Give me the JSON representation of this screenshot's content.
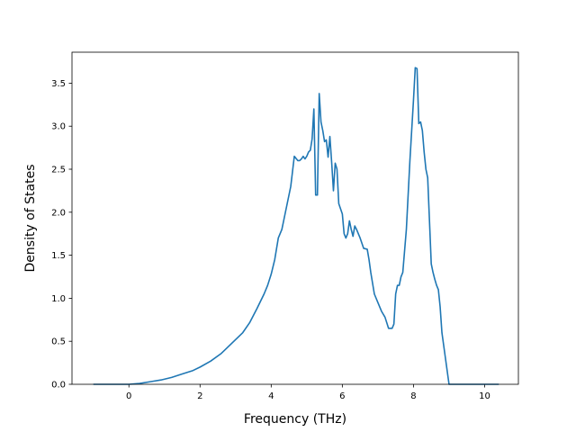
{
  "chart_data": {
    "type": "line",
    "title": "",
    "xlabel": "Frequency (THz)",
    "ylabel": "Density of States",
    "xlim": [
      -1.6,
      10.95
    ],
    "ylim": [
      0.0,
      3.86
    ],
    "xticks": [
      0,
      2,
      4,
      6,
      8,
      10
    ],
    "xtick_labels": [
      "0",
      "2",
      "4",
      "6",
      "8",
      "10"
    ],
    "yticks": [
      0.0,
      0.5,
      1.0,
      1.5,
      2.0,
      2.5,
      3.0,
      3.5
    ],
    "ytick_labels": [
      "0.0",
      "0.5",
      "1.0",
      "1.5",
      "2.0",
      "2.5",
      "3.0",
      "3.5"
    ],
    "grid": false,
    "line_color": "#1f77b4",
    "series": [
      {
        "x": [
          -1.0,
          0.0,
          0.3,
          0.6,
          0.9,
          1.2,
          1.5,
          1.8,
          2.0,
          2.3,
          2.6,
          2.8,
          3.0,
          3.2,
          3.4,
          3.6,
          3.8,
          3.9,
          4.0,
          4.1,
          4.2,
          4.3,
          4.35,
          4.45,
          4.55,
          4.65,
          4.75,
          4.8,
          4.85,
          4.9,
          4.95,
          5.0,
          5.05,
          5.1,
          5.15,
          5.2,
          5.25,
          5.3,
          5.35,
          5.4,
          5.45,
          5.5,
          5.55,
          5.6,
          5.65,
          5.7,
          5.75,
          5.8,
          5.85,
          5.9,
          6.0,
          6.05,
          6.1,
          6.15,
          6.2,
          6.25,
          6.3,
          6.35,
          6.4,
          6.5,
          6.6,
          6.7,
          6.75,
          6.8,
          6.9,
          7.0,
          7.1,
          7.2,
          7.3,
          7.4,
          7.45,
          7.5,
          7.55,
          7.6,
          7.65,
          7.7,
          7.8,
          7.9,
          8.0,
          8.05,
          8.1,
          8.15,
          8.2,
          8.25,
          8.3,
          8.35,
          8.4,
          8.45,
          8.5,
          8.55,
          8.6,
          8.65,
          8.7,
          8.75,
          8.8,
          8.9,
          9.0,
          9.1,
          9.15,
          9.2,
          9.25,
          9.3,
          9.35,
          9.4,
          9.5,
          9.55,
          10.0,
          10.4
        ],
        "y": [
          0.0,
          0.0,
          0.01,
          0.03,
          0.05,
          0.08,
          0.12,
          0.16,
          0.2,
          0.27,
          0.36,
          0.44,
          0.52,
          0.6,
          0.72,
          0.88,
          1.05,
          1.15,
          1.28,
          1.45,
          1.7,
          1.8,
          1.9,
          2.1,
          2.3,
          2.65,
          2.6,
          2.6,
          2.62,
          2.65,
          2.62,
          2.65,
          2.7,
          2.72,
          2.85,
          3.2,
          2.2,
          2.2,
          3.38,
          3.05,
          2.95,
          2.82,
          2.84,
          2.64,
          2.88,
          2.58,
          2.25,
          2.57,
          2.5,
          2.1,
          1.98,
          1.75,
          1.7,
          1.75,
          1.9,
          1.8,
          1.72,
          1.84,
          1.8,
          1.7,
          1.58,
          1.57,
          1.45,
          1.3,
          1.05,
          0.95,
          0.85,
          0.78,
          0.65,
          0.65,
          0.7,
          1.05,
          1.15,
          1.15,
          1.25,
          1.3,
          1.8,
          2.6,
          3.3,
          3.68,
          3.67,
          3.03,
          3.05,
          2.95,
          2.7,
          2.5,
          2.4,
          1.9,
          1.4,
          1.3,
          1.22,
          1.15,
          1.1,
          0.9,
          0.6,
          0.3,
          0.0,
          0.0,
          0.0,
          0.0,
          0.0,
          0.0,
          0.0,
          0.0,
          0.0,
          0.0,
          0.0,
          0.0
        ]
      }
    ]
  }
}
